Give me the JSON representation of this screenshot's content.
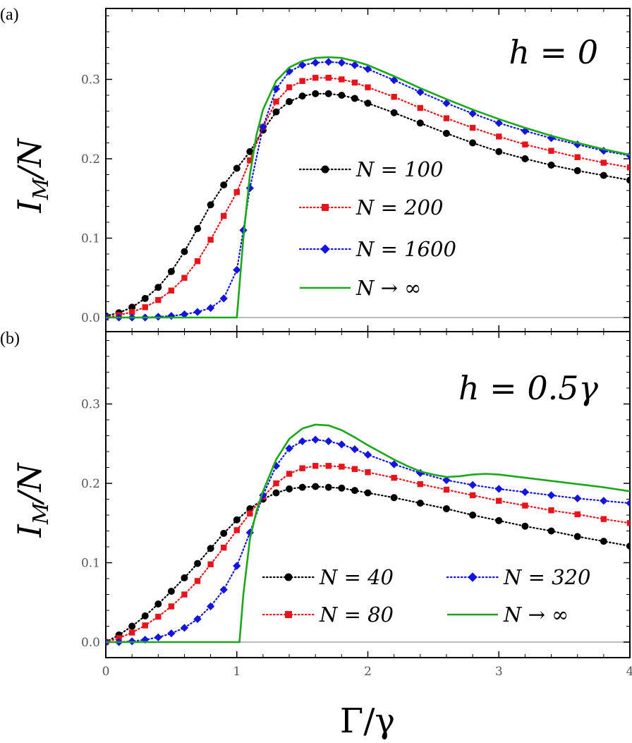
{
  "figure": {
    "x_axis_label": "Γ/γ",
    "colors": {
      "n_small": "#000000",
      "n_mid": "#e8141c",
      "n_large": "#1414e0",
      "n_inf": "#1aa81a",
      "axis": "#000000",
      "zero_line": "#bbbbbb",
      "tick_text": "#555555"
    }
  },
  "chart_data": [
    {
      "panel_label": "(a)",
      "type": "line",
      "annotation": "h = 0",
      "xlabel": "Γ/γ",
      "ylabel": "I_M/N",
      "ylabel_main": "I",
      "ylabel_sub": "M",
      "ylabel_tail": "/N",
      "xlim": [
        0,
        4
      ],
      "ylim": [
        -0.01,
        0.39
      ],
      "xticks": [
        0,
        1,
        2,
        3,
        4
      ],
      "yticks": [
        0.0,
        0.1,
        0.2,
        0.3
      ],
      "ytick_labels": [
        "0.0",
        "0.1",
        "0.2",
        "0.3"
      ],
      "xtick_labels_shown": false,
      "grid": false,
      "legend_position": "center-right",
      "legend_columns": 1,
      "series": [
        {
          "name": "N = 100",
          "color": "#000000",
          "marker": "circle",
          "line": "dotted",
          "x": [
            0,
            0.1,
            0.2,
            0.3,
            0.4,
            0.5,
            0.6,
            0.7,
            0.8,
            0.9,
            1.0,
            1.1,
            1.2,
            1.3,
            1.4,
            1.5,
            1.6,
            1.7,
            1.8,
            1.9,
            2.0,
            2.2,
            2.4,
            2.6,
            2.8,
            3.0,
            3.2,
            3.4,
            3.6,
            3.8,
            4.0
          ],
          "y": [
            0.002,
            0.006,
            0.013,
            0.024,
            0.038,
            0.058,
            0.083,
            0.112,
            0.142,
            0.167,
            0.188,
            0.209,
            0.236,
            0.259,
            0.272,
            0.279,
            0.282,
            0.282,
            0.28,
            0.276,
            0.27,
            0.258,
            0.245,
            0.232,
            0.22,
            0.209,
            0.2,
            0.192,
            0.185,
            0.179,
            0.173
          ]
        },
        {
          "name": "N = 200",
          "color": "#e8141c",
          "marker": "square",
          "line": "dotted",
          "x": [
            0,
            0.1,
            0.2,
            0.3,
            0.4,
            0.5,
            0.6,
            0.7,
            0.8,
            0.9,
            1.0,
            1.1,
            1.2,
            1.3,
            1.4,
            1.5,
            1.6,
            1.7,
            1.8,
            1.9,
            2.0,
            2.2,
            2.4,
            2.6,
            2.8,
            3.0,
            3.2,
            3.4,
            3.6,
            3.8,
            4.0
          ],
          "y": [
            0.0,
            0.003,
            0.007,
            0.013,
            0.022,
            0.034,
            0.05,
            0.071,
            0.098,
            0.128,
            0.158,
            0.198,
            0.24,
            0.272,
            0.29,
            0.298,
            0.302,
            0.302,
            0.3,
            0.296,
            0.29,
            0.278,
            0.264,
            0.251,
            0.239,
            0.228,
            0.218,
            0.21,
            0.202,
            0.195,
            0.189
          ]
        },
        {
          "name": "N = 1600",
          "color": "#1414e0",
          "marker": "diamond",
          "line": "dotted",
          "x": [
            0,
            0.1,
            0.2,
            0.3,
            0.4,
            0.5,
            0.6,
            0.7,
            0.8,
            0.9,
            1.0,
            1.05,
            1.1,
            1.2,
            1.3,
            1.4,
            1.5,
            1.6,
            1.7,
            1.8,
            1.9,
            2.0,
            2.2,
            2.4,
            2.6,
            2.8,
            3.0,
            3.2,
            3.4,
            3.6,
            3.8,
            4.0
          ],
          "y": [
            0.0,
            0.0,
            0.0,
            0.0,
            0.001,
            0.002,
            0.004,
            0.007,
            0.012,
            0.024,
            0.06,
            0.11,
            0.163,
            0.24,
            0.288,
            0.31,
            0.318,
            0.321,
            0.322,
            0.321,
            0.318,
            0.313,
            0.299,
            0.284,
            0.27,
            0.257,
            0.245,
            0.235,
            0.226,
            0.218,
            0.21,
            0.204
          ]
        },
        {
          "name": "N → ∞",
          "color": "#1aa81a",
          "marker": "none",
          "line": "solid",
          "x": [
            0,
            0.5,
            0.98,
            1.0,
            1.02,
            1.05,
            1.1,
            1.15,
            1.2,
            1.3,
            1.4,
            1.5,
            1.6,
            1.7,
            1.8,
            1.9,
            2.0,
            2.2,
            2.4,
            2.6,
            2.8,
            3.0,
            3.2,
            3.4,
            3.6,
            3.8,
            4.0
          ],
          "y": [
            0.0,
            0.0,
            0.0,
            0.0,
            0.04,
            0.1,
            0.18,
            0.23,
            0.262,
            0.298,
            0.315,
            0.323,
            0.327,
            0.328,
            0.327,
            0.323,
            0.318,
            0.304,
            0.289,
            0.275,
            0.262,
            0.25,
            0.239,
            0.229,
            0.22,
            0.212,
            0.205
          ]
        }
      ]
    },
    {
      "panel_label": "(b)",
      "type": "line",
      "annotation": "h = 0.5γ",
      "xlabel": "Γ/γ",
      "ylabel": "I_M/N",
      "ylabel_main": "I",
      "ylabel_sub": "M",
      "ylabel_tail": "/N",
      "xlim": [
        0,
        4
      ],
      "ylim": [
        -0.01,
        0.39
      ],
      "xticks": [
        0,
        1,
        2,
        3,
        4
      ],
      "xtick_labels": [
        "0",
        "1",
        "2",
        "3",
        "4"
      ],
      "yticks": [
        0.0,
        0.1,
        0.2,
        0.3
      ],
      "ytick_labels": [
        "0.0",
        "0.1",
        "0.2",
        "0.3"
      ],
      "xtick_labels_shown": true,
      "grid": false,
      "legend_position": "bottom-right",
      "legend_columns": 2,
      "series": [
        {
          "name": "N = 40",
          "color": "#000000",
          "marker": "circle",
          "line": "dotted",
          "x": [
            0,
            0.1,
            0.2,
            0.3,
            0.4,
            0.5,
            0.6,
            0.7,
            0.8,
            0.9,
            1.0,
            1.1,
            1.2,
            1.3,
            1.4,
            1.5,
            1.6,
            1.7,
            1.8,
            1.9,
            2.0,
            2.2,
            2.4,
            2.6,
            2.8,
            3.0,
            3.2,
            3.4,
            3.6,
            3.8,
            4.0
          ],
          "y": [
            0.0,
            0.009,
            0.02,
            0.033,
            0.048,
            0.064,
            0.081,
            0.099,
            0.118,
            0.137,
            0.154,
            0.168,
            0.18,
            0.188,
            0.193,
            0.195,
            0.196,
            0.195,
            0.194,
            0.191,
            0.188,
            0.182,
            0.175,
            0.168,
            0.16,
            0.153,
            0.146,
            0.14,
            0.133,
            0.127,
            0.121
          ]
        },
        {
          "name": "N = 80",
          "color": "#e8141c",
          "marker": "square",
          "line": "dotted",
          "x": [
            0,
            0.1,
            0.2,
            0.3,
            0.4,
            0.5,
            0.6,
            0.7,
            0.8,
            0.9,
            1.0,
            1.1,
            1.2,
            1.3,
            1.4,
            1.5,
            1.6,
            1.7,
            1.8,
            1.9,
            2.0,
            2.2,
            2.4,
            2.6,
            2.8,
            3.0,
            3.2,
            3.4,
            3.6,
            3.8,
            4.0
          ],
          "y": [
            0.0,
            0.005,
            0.012,
            0.021,
            0.032,
            0.045,
            0.06,
            0.077,
            0.098,
            0.119,
            0.141,
            0.162,
            0.183,
            0.2,
            0.212,
            0.219,
            0.222,
            0.222,
            0.221,
            0.218,
            0.214,
            0.207,
            0.199,
            0.192,
            0.185,
            0.178,
            0.172,
            0.166,
            0.161,
            0.155,
            0.15
          ]
        },
        {
          "name": "N = 320",
          "color": "#1414e0",
          "marker": "diamond",
          "line": "dotted",
          "x": [
            0,
            0.1,
            0.2,
            0.3,
            0.4,
            0.5,
            0.6,
            0.7,
            0.8,
            0.9,
            1.0,
            1.1,
            1.2,
            1.3,
            1.4,
            1.5,
            1.6,
            1.7,
            1.8,
            1.9,
            2.0,
            2.2,
            2.4,
            2.6,
            2.8,
            3.0,
            3.2,
            3.4,
            3.6,
            3.8,
            4.0
          ],
          "y": [
            0.0,
            0.0,
            0.001,
            0.003,
            0.006,
            0.011,
            0.018,
            0.029,
            0.045,
            0.066,
            0.096,
            0.138,
            0.185,
            0.222,
            0.244,
            0.253,
            0.255,
            0.253,
            0.249,
            0.243,
            0.236,
            0.224,
            0.213,
            0.204,
            0.198,
            0.193,
            0.189,
            0.185,
            0.181,
            0.178,
            0.175
          ]
        },
        {
          "name": "N → ∞",
          "color": "#1aa81a",
          "marker": "none",
          "line": "solid",
          "x": [
            0,
            0.5,
            1.0,
            1.02,
            1.05,
            1.1,
            1.15,
            1.2,
            1.3,
            1.4,
            1.5,
            1.6,
            1.7,
            1.8,
            1.9,
            2.0,
            2.1,
            2.2,
            2.3,
            2.4,
            2.5,
            2.6,
            2.7,
            2.8,
            2.9,
            3.0,
            3.2,
            3.4,
            3.6,
            3.8,
            4.0
          ],
          "y": [
            0.0,
            0.0,
            0.0,
            0.0,
            0.06,
            0.13,
            0.165,
            0.19,
            0.23,
            0.256,
            0.269,
            0.274,
            0.273,
            0.267,
            0.258,
            0.248,
            0.239,
            0.23,
            0.222,
            0.215,
            0.211,
            0.208,
            0.209,
            0.211,
            0.212,
            0.211,
            0.207,
            0.203,
            0.199,
            0.195,
            0.19
          ]
        }
      ]
    }
  ]
}
